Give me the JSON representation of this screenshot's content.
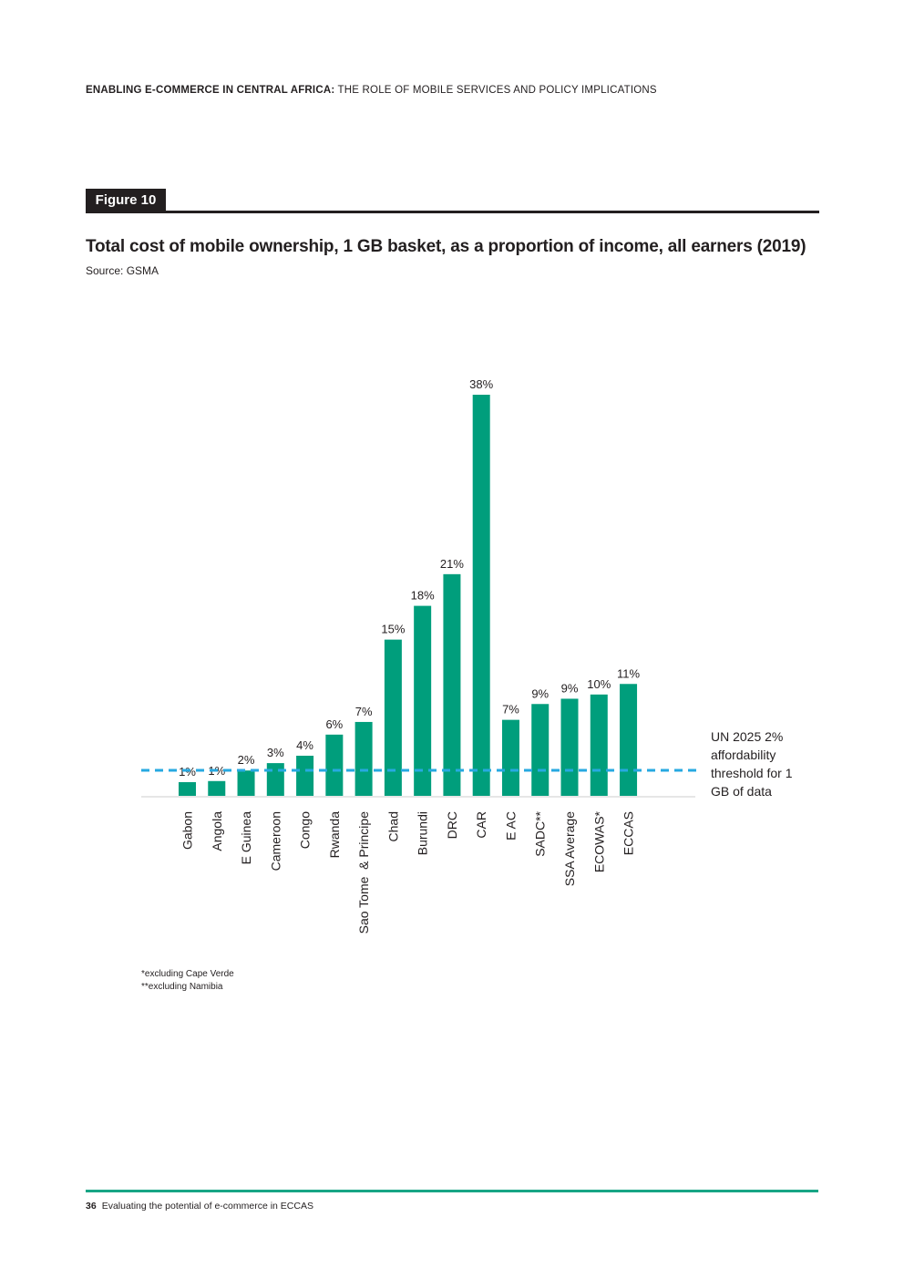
{
  "header": {
    "strong": "ENABLING E-COMMERCE IN CENTRAL AFRICA:",
    "rest": " THE ROLE OF MOBILE SERVICES AND POLICY IMPLICATIONS"
  },
  "figure": {
    "tag": "Figure 10",
    "title": "Total cost of mobile ownership, 1 GB basket, as a proportion of income, all earners (2019)",
    "source": "Source: GSMA"
  },
  "colors": {
    "bar": "#009e7c",
    "threshold": "#27a9e1",
    "baseline": "#e6e6e6",
    "footer_rule": "#17a585"
  },
  "chart_data": {
    "type": "bar",
    "title": "Total cost of mobile ownership, 1 GB basket, as a proportion of income, all earners (2019)",
    "xlabel": "",
    "ylabel": "",
    "ylim": [
      0,
      38
    ],
    "grid": false,
    "categories": [
      "Gabon",
      "Angola",
      "E Guinea",
      "Cameroon",
      "Congo",
      "Rwanda",
      "Sao Tome  & Principe",
      "Chad",
      "Burundi",
      "DRC",
      "CAR",
      "E AC",
      "SADC**",
      "SSA Average",
      "ECOWAS*",
      "ECCAS"
    ],
    "values": [
      1.3,
      1.4,
      2.4,
      3.1,
      3.8,
      5.8,
      7.0,
      14.8,
      18.0,
      21.0,
      38.0,
      7.2,
      8.7,
      9.2,
      9.6,
      10.6
    ],
    "data_labels": [
      "1%",
      "1%",
      "2%",
      "3%",
      "4%",
      "6%",
      "7%",
      "15%",
      "18%",
      "21%",
      "38%",
      "7%",
      "9%",
      "9%",
      "10%",
      "11%"
    ],
    "reference_line": {
      "value": 2,
      "label": "UN 2025 2% affordability threshold for 1 GB of data",
      "style": "dashed"
    }
  },
  "threshold_label": "UN 2025 2% affordability threshold for 1 GB of data",
  "footnotes": {
    "line1": "*excluding Cape Verde",
    "line2": "**excluding Namibia"
  },
  "footer": {
    "page_number": "36",
    "text": "Evaluating the potential of e-commerce in ECCAS"
  }
}
